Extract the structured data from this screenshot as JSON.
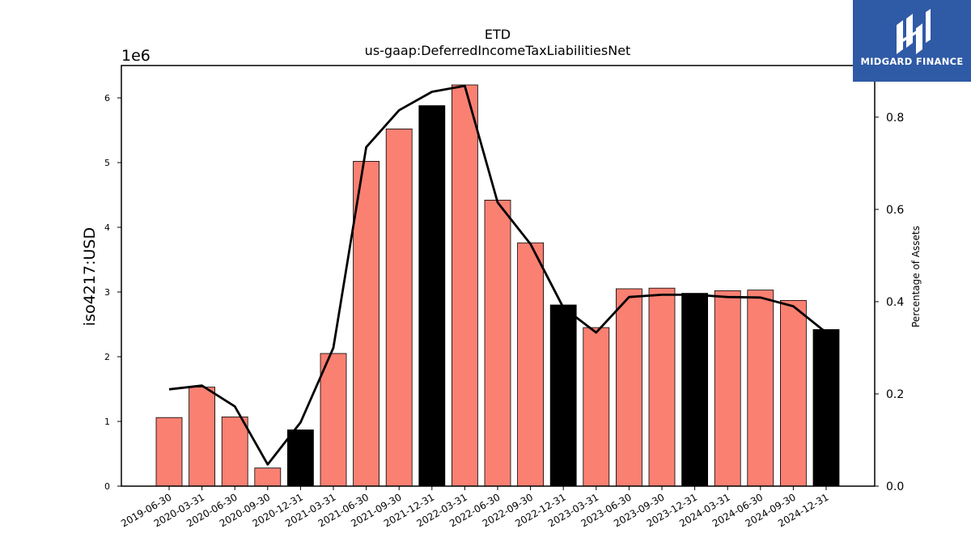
{
  "chart_data": {
    "type": "bar",
    "title": "ETD",
    "subtitle": "us-gaap:DeferredIncomeTaxLiabilitiesNet",
    "ylabel": "iso4217:USD",
    "y2label": "Percentage of Assets",
    "offset_label": "1e6",
    "ylim": [
      0,
      6500000
    ],
    "y2lim": [
      0,
      0.912
    ],
    "y_ticks": [
      0,
      1000000,
      2000000,
      3000000,
      4000000,
      5000000,
      6000000
    ],
    "y_tick_labels": [
      "0",
      "1",
      "2",
      "3",
      "4",
      "5",
      "6"
    ],
    "y2_ticks": [
      0.0,
      0.2,
      0.4,
      0.6,
      0.8
    ],
    "y2_tick_labels": [
      "0.0",
      "0.2",
      "0.4",
      "0.6",
      "0.8"
    ],
    "categories": [
      "2019-06-30",
      "2020-03-31",
      "2020-06-30",
      "2020-09-30",
      "2020-12-31",
      "2021-03-31",
      "2021-06-30",
      "2021-09-30",
      "2021-12-31",
      "2022-03-31",
      "2022-06-30",
      "2022-09-30",
      "2022-12-31",
      "2023-03-31",
      "2023-06-30",
      "2023-09-30",
      "2023-12-31",
      "2024-03-31",
      "2024-06-30",
      "2024-09-30",
      "2024-12-31"
    ],
    "values": [
      1060000,
      1530000,
      1070000,
      280000,
      870000,
      2050000,
      5020000,
      5520000,
      5880000,
      6200000,
      4420000,
      3760000,
      2800000,
      2450000,
      3050000,
      3060000,
      2980000,
      3020000,
      3030000,
      2870000,
      2420000
    ],
    "bar_colors": [
      "#fa8072",
      "#fa8072",
      "#fa8072",
      "#fa8072",
      "#000000",
      "#fa8072",
      "#fa8072",
      "#fa8072",
      "#000000",
      "#fa8072",
      "#fa8072",
      "#fa8072",
      "#000000",
      "#fa8072",
      "#fa8072",
      "#fa8072",
      "#000000",
      "#fa8072",
      "#fa8072",
      "#fa8072",
      "#000000"
    ],
    "line_series": {
      "name": "Percentage of Assets",
      "axis": "right",
      "values": [
        0.21,
        0.218,
        0.173,
        0.047,
        0.138,
        0.3,
        0.735,
        0.815,
        0.855,
        0.868,
        0.615,
        0.525,
        0.387,
        0.333,
        0.41,
        0.415,
        0.415,
        0.41,
        0.409,
        0.39,
        0.333
      ]
    },
    "grid": false
  },
  "logo": {
    "text": "MIDGARD FINANCE",
    "background": "#2f5aa6",
    "color": "#ffffff"
  }
}
